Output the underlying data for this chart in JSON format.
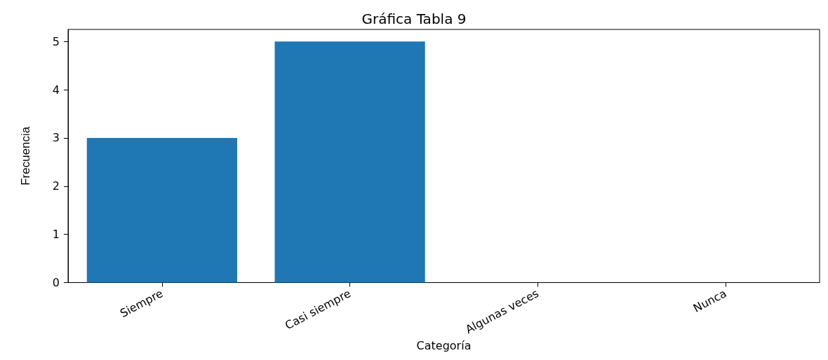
{
  "chart_data": {
    "type": "bar",
    "title": "Gráfica Tabla 9",
    "xlabel": "Categoría",
    "ylabel": "Frecuencia",
    "categories": [
      "Siempre",
      "Casi siempre",
      "Algunas veces",
      "Nunca"
    ],
    "values": [
      3,
      5,
      0,
      0
    ],
    "color": "#1f77b4",
    "ylim": [
      0,
      5.25
    ],
    "yticks": [
      0,
      1,
      2,
      3,
      4,
      5
    ]
  }
}
